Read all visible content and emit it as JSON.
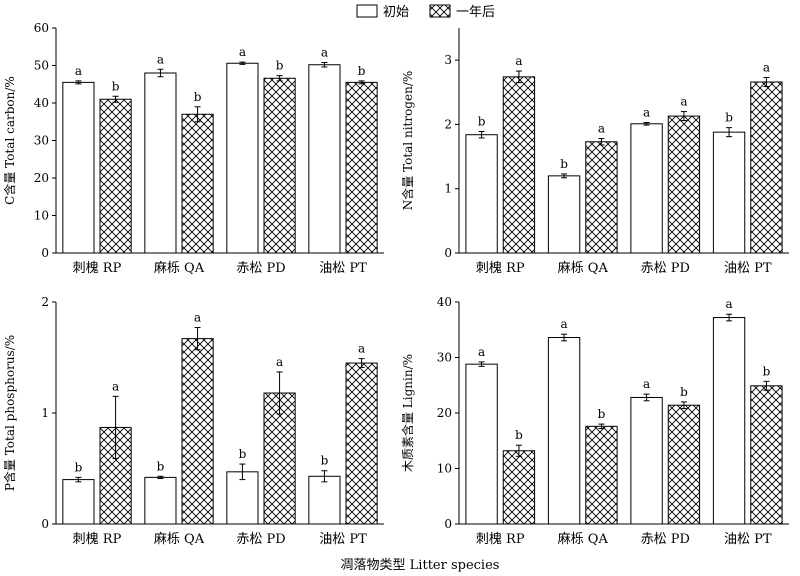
{
  "legend": {
    "items": [
      {
        "name": "初始",
        "style": "open"
      },
      {
        "name": "一年后",
        "style": "crosshatch"
      }
    ]
  },
  "xlabel": "凋落物类型 Litter species",
  "colors": {
    "axis": "#000000",
    "bar_fill": "#ffffff",
    "hatch": "#000000"
  },
  "chart_data": [
    {
      "type": "bar",
      "ylabel": "C含量 Total carbon/%",
      "ylim": [
        0,
        60
      ],
      "yticks": [
        "0",
        "10",
        "20",
        "30",
        "40",
        "50",
        "60"
      ],
      "categories": [
        "刺槐  RP",
        "麻栎  QA",
        "赤松  PD",
        "油松  PT"
      ],
      "series": [
        {
          "name": "初始",
          "values": [
            45.5,
            48.0,
            50.6,
            50.2
          ],
          "errors": [
            0.4,
            1.0,
            0.3,
            0.6
          ],
          "letters": [
            "a",
            "a",
            "a",
            "a"
          ]
        },
        {
          "name": "一年后",
          "values": [
            41.0,
            37.0,
            46.6,
            45.5
          ],
          "errors": [
            0.8,
            2.0,
            0.7,
            0.4
          ],
          "letters": [
            "b",
            "b",
            "b",
            "b"
          ]
        }
      ]
    },
    {
      "type": "bar",
      "ylabel": "N含量 Total nitrogen/%",
      "ylim": [
        0,
        3.5
      ],
      "yticks": [
        "0",
        "1",
        "2",
        "3"
      ],
      "categories": [
        "刺槐  RP",
        "麻栎  QA",
        "赤松  PD",
        "油松  PT"
      ],
      "series": [
        {
          "name": "初始",
          "values": [
            1.84,
            1.2,
            2.01,
            1.88
          ],
          "errors": [
            0.05,
            0.03,
            0.02,
            0.07
          ],
          "letters": [
            "b",
            "b",
            "a",
            "b"
          ]
        },
        {
          "name": "一年后",
          "values": [
            2.74,
            1.73,
            2.13,
            2.66
          ],
          "errors": [
            0.09,
            0.05,
            0.07,
            0.07
          ],
          "letters": [
            "a",
            "a",
            "a",
            "a"
          ]
        }
      ]
    },
    {
      "type": "bar",
      "ylabel": "P含量 Total phosphorus/%",
      "ylim": [
        0,
        2
      ],
      "yticks": [
        "0",
        "1",
        "2"
      ],
      "categories": [
        "刺槐  RP",
        "麻栎  QA",
        "赤松  PD",
        "油松  PT"
      ],
      "series": [
        {
          "name": "初始",
          "values": [
            0.4,
            0.42,
            0.47,
            0.43
          ],
          "errors": [
            0.02,
            0.01,
            0.07,
            0.05
          ],
          "letters": [
            "b",
            "b",
            "b",
            "b"
          ]
        },
        {
          "name": "一年后",
          "values": [
            0.87,
            1.67,
            1.18,
            1.45
          ],
          "errors": [
            0.28,
            0.1,
            0.19,
            0.04
          ],
          "letters": [
            "a",
            "a",
            "a",
            "a"
          ]
        }
      ]
    },
    {
      "type": "bar",
      "ylabel": "木质素含量 Lignin/%",
      "ylim": [
        0,
        40
      ],
      "yticks": [
        "0",
        "10",
        "20",
        "30",
        "40"
      ],
      "categories": [
        "刺槐  RP",
        "麻栎  QA",
        "赤松  PD",
        "油松  PT"
      ],
      "series": [
        {
          "name": "初始",
          "values": [
            28.8,
            33.6,
            22.8,
            37.2
          ],
          "errors": [
            0.4,
            0.6,
            0.6,
            0.6
          ],
          "letters": [
            "a",
            "a",
            "a",
            "a"
          ]
        },
        {
          "name": "一年后",
          "values": [
            13.2,
            17.6,
            21.4,
            24.9
          ],
          "errors": [
            1.0,
            0.4,
            0.6,
            0.8
          ],
          "letters": [
            "b",
            "b",
            "b",
            "b"
          ]
        }
      ]
    }
  ]
}
